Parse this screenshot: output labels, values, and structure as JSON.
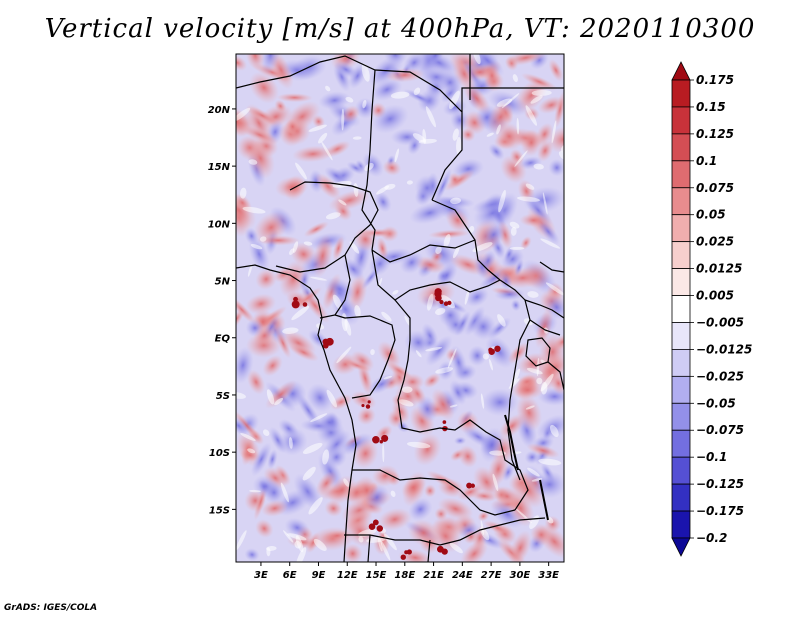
{
  "title": "Vertical velocity [m/s] at 400hPa, VT: 2020110300",
  "credit": "GrADS: IGES/COLA",
  "map": {
    "lat_labels": [
      {
        "label": "20N",
        "value": 20
      },
      {
        "label": "15N",
        "value": 15
      },
      {
        "label": "10N",
        "value": 10
      },
      {
        "label": "5N",
        "value": 5
      },
      {
        "label": "EQ",
        "value": 0
      },
      {
        "label": "5S",
        "value": -5
      },
      {
        "label": "10S",
        "value": -10
      },
      {
        "label": "15S",
        "value": -15
      }
    ],
    "lon_labels": [
      {
        "label": "3E",
        "value": 3
      },
      {
        "label": "6E",
        "value": 6
      },
      {
        "label": "9E",
        "value": 9
      },
      {
        "label": "12E",
        "value": 12
      },
      {
        "label": "15E",
        "value": 15
      },
      {
        "label": "18E",
        "value": 18
      },
      {
        "label": "21E",
        "value": 21
      },
      {
        "label": "24E",
        "value": 24
      },
      {
        "label": "27E",
        "value": 27
      },
      {
        "label": "30E",
        "value": 30
      },
      {
        "label": "33E",
        "value": 33
      }
    ],
    "lon_range": [
      0.4,
      34.6
    ],
    "lat_range": [
      -19.6,
      24.8
    ]
  },
  "colorbar": {
    "labels": [
      "0.175",
      "0.15",
      "0.125",
      "0.1",
      "0.075",
      "0.05",
      "0.025",
      "0.0125",
      "0.005",
      "−0.005",
      "−0.0125",
      "−0.025",
      "−0.05",
      "−0.075",
      "−0.1",
      "−0.125",
      "−0.175",
      "−0.2"
    ],
    "colors": [
      "#a00a14",
      "#b81c22",
      "#c8323a",
      "#d44e54",
      "#df6c70",
      "#e88c8e",
      "#f0aeae",
      "#f7cfcd",
      "#fbe8e6",
      "#ffffff",
      "#e8e6fa",
      "#cfccf5",
      "#b1aef0",
      "#9390e9",
      "#736fe0",
      "#5550d4",
      "#3330c2",
      "#1a14ad",
      "#0c0896"
    ]
  }
}
